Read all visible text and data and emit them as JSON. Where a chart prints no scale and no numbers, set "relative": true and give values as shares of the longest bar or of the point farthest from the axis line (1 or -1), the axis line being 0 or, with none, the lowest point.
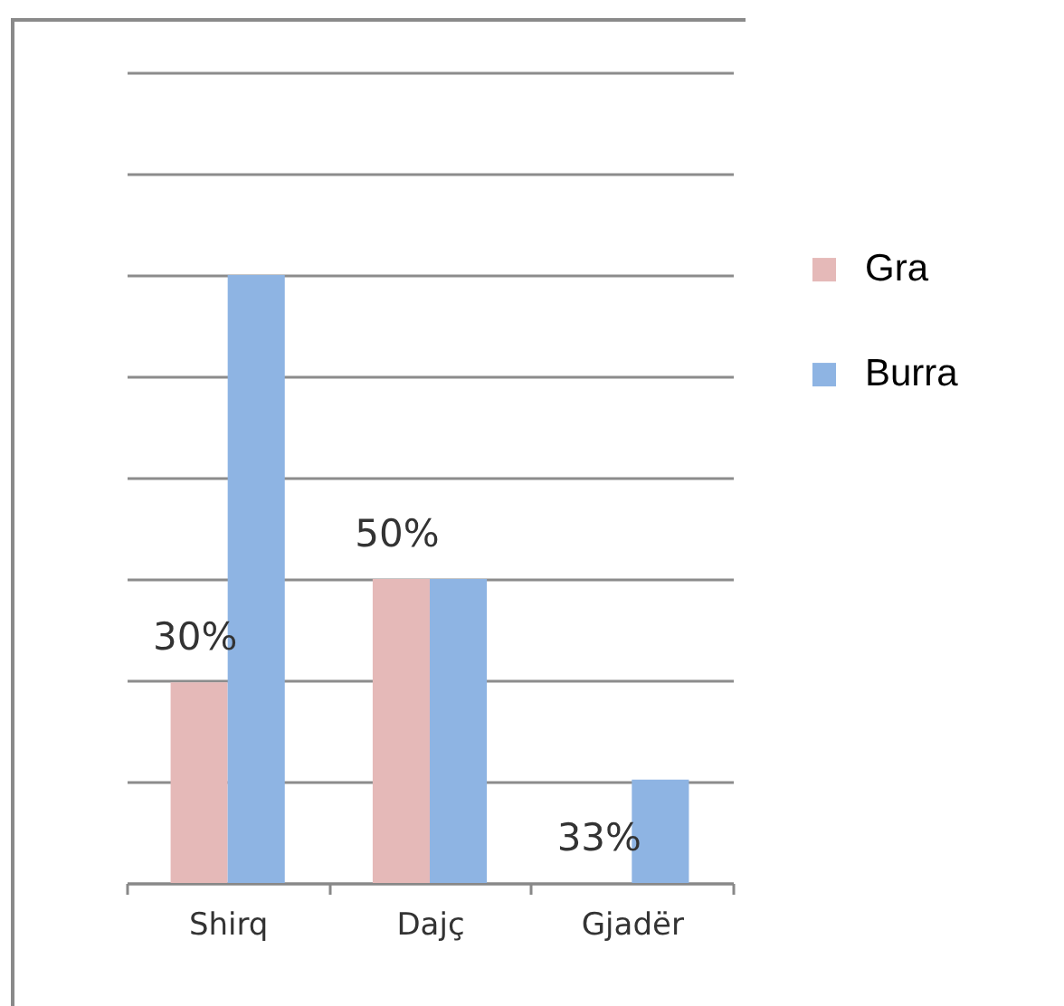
{
  "chart_data": {
    "type": "bar",
    "categories": [
      "Shirq",
      "Dajç",
      "Gjadër"
    ],
    "series": [
      {
        "name": "Gra",
        "color": "#e5b9b8",
        "values": [
          0.33,
          0.5,
          0
        ]
      },
      {
        "name": "Burra",
        "color": "#8eb4e3",
        "values": [
          1,
          0.5,
          0.17
        ]
      }
    ],
    "annotations": [
      {
        "text": "30%",
        "x": "Shirq",
        "y": 0.33
      },
      {
        "text": "50%",
        "x": "Dajç",
        "y": 0.5
      },
      {
        "text": "33%",
        "x": "Gjadër",
        "y": 0
      }
    ],
    "relative": true,
    "grid": "y",
    "legend": "right"
  }
}
